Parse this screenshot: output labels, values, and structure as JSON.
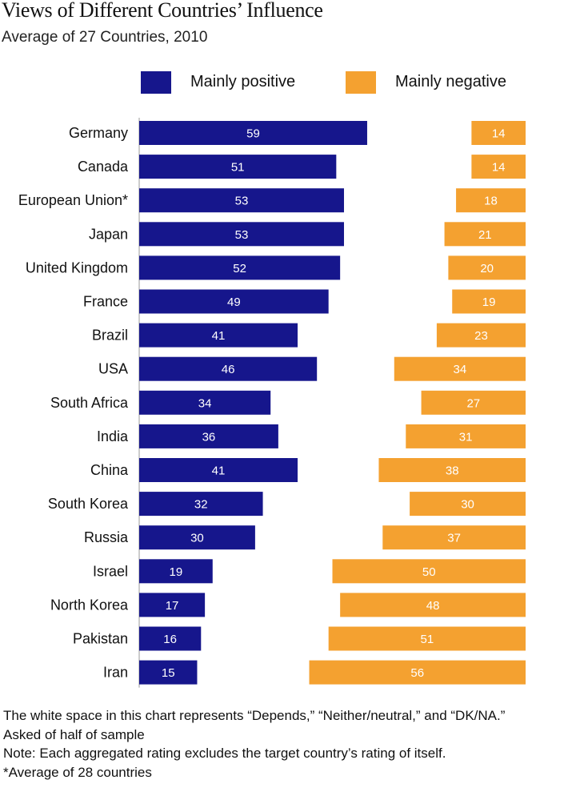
{
  "title": "Views of Different Countries’ Influence",
  "subtitle": "Average of 27 Countries, 2010",
  "colors": {
    "positive": "#16168c",
    "negative": "#f4a130",
    "axis": "#999999"
  },
  "chart_data": {
    "type": "bar",
    "orientation": "horizontal",
    "categories": [
      "Germany",
      "Canada",
      "European Union*",
      "Japan",
      "United Kingdom",
      "France",
      "Brazil",
      "USA",
      "South Africa",
      "India",
      "China",
      "South Korea",
      "Russia",
      "Israel",
      "North Korea",
      "Pakistan",
      "Iran"
    ],
    "series": [
      {
        "name": "Mainly positive",
        "values": [
          59,
          51,
          53,
          53,
          52,
          49,
          41,
          46,
          34,
          36,
          41,
          32,
          30,
          19,
          17,
          16,
          15
        ]
      },
      {
        "name": "Mainly negative",
        "values": [
          14,
          14,
          18,
          21,
          20,
          19,
          23,
          34,
          27,
          31,
          38,
          30,
          37,
          50,
          48,
          51,
          56
        ]
      }
    ],
    "positive_anchor": "left",
    "negative_anchor": "right",
    "legend_placement": "top",
    "data_labels": true,
    "xlim": [
      0,
      100
    ]
  },
  "notes": [
    "The white space in this chart represents “Depends,” “Neither/neutral,” and “DK/NA.”",
    "Asked of half of sample",
    "Note: Each aggregated rating excludes the target country’s rating of itself.",
    "*Average of 28 countries"
  ]
}
